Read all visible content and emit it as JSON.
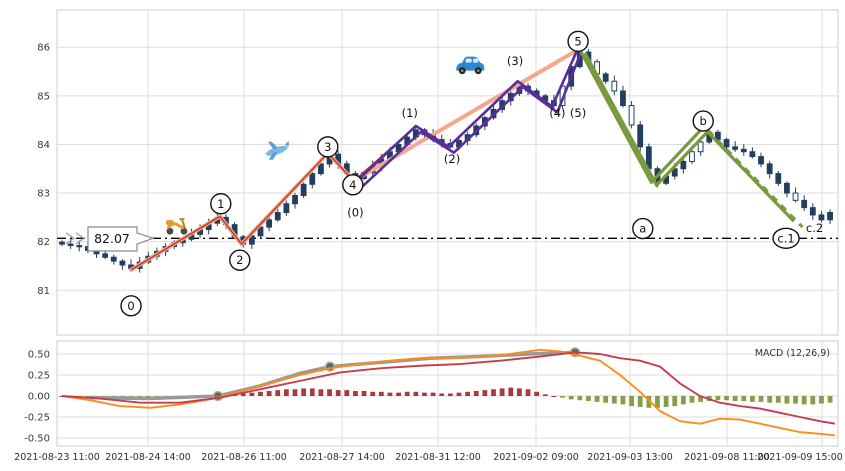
{
  "macd_label": "MACD (12,26,9)",
  "price_line": {
    "value": 82.07,
    "label": "82.07"
  },
  "price_axis": {
    "labels": [
      "86",
      "85",
      "84",
      "83",
      "82",
      "81"
    ],
    "values": [
      86,
      85,
      84,
      83,
      82,
      81
    ]
  },
  "macd_axis": {
    "labels": [
      "0.50",
      "0.25",
      "0.00",
      "-0.25",
      "-0.50"
    ],
    "values": [
      0.5,
      0.25,
      0.0,
      -0.25,
      -0.5
    ]
  },
  "x_axis": {
    "labels": [
      "2021-08-23 11:00",
      "2021-08-24 14:00",
      "2021-08-26 11:00",
      "2021-08-27 14:00",
      "2021-08-31 12:00",
      "2021-09-02 09:00",
      "2021-09-03 13:00",
      "2021-09-08 11:00",
      "2021-09-09 15:00"
    ],
    "positions": [
      57,
      148,
      244,
      342,
      438,
      536,
      630,
      727,
      822
    ]
  },
  "colors": {
    "candle": "#233f5f",
    "salmon": "#f4a78c",
    "red_line": "#c0392b",
    "purple": "#5a2d9c",
    "green": "#789a3c",
    "hline": "#000000",
    "macd_orange": "#ff8c1a",
    "macd_red": "#c43d4d",
    "macd_gray": "#999999",
    "hist_pos": "#a03030",
    "hist_neg": "#7f9a3c",
    "grid": "#dddddd",
    "panel": "#cccccc"
  },
  "icons": [
    {
      "name": "scooter",
      "i": 13.2,
      "p": 82.36
    },
    {
      "name": "airplane",
      "i": 25.0,
      "p": 83.87
    },
    {
      "name": "car",
      "i": 47.3,
      "p": 85.62
    }
  ],
  "chart_data": {
    "type": "candlestick_elliott_wave_with_macd",
    "ylim_price": [
      80.07,
      86.76
    ],
    "ylim_macd": [
      -0.6,
      0.65
    ],
    "grid": true,
    "candles": {
      "closes": [
        81.95,
        81.92,
        81.9,
        81.82,
        81.75,
        81.68,
        81.6,
        81.52,
        81.45,
        81.58,
        81.7,
        81.8,
        81.9,
        81.98,
        82.05,
        82.15,
        82.25,
        82.38,
        82.5,
        82.35,
        82.1,
        81.95,
        82.12,
        82.3,
        82.45,
        82.6,
        82.78,
        82.95,
        83.18,
        83.4,
        83.6,
        83.8,
        83.6,
        83.4,
        83.3,
        83.42,
        83.55,
        83.7,
        83.85,
        84.0,
        84.15,
        84.3,
        84.2,
        84.1,
        84.02,
        83.95,
        84.08,
        84.2,
        84.38,
        84.55,
        84.72,
        84.9,
        85.05,
        85.2,
        85.1,
        85.0,
        84.9,
        84.8,
        85.2,
        85.6,
        85.9,
        85.7,
        85.45,
        85.3,
        85.1,
        84.8,
        84.4,
        83.95,
        83.5,
        83.2,
        83.35,
        83.5,
        83.65,
        83.85,
        84.05,
        84.25,
        84.1,
        83.95,
        83.9,
        83.85,
        83.75,
        83.6,
        83.4,
        83.2,
        83.0,
        82.85,
        82.7,
        82.55,
        82.45,
        82.6
      ],
      "hollow_indices": [
        58,
        62,
        64,
        66,
        73,
        74,
        85
      ]
    },
    "waves": {
      "impulse_channel": [
        [
          8,
          81.42
        ],
        [
          18.3,
          82.52
        ],
        [
          20.8,
          81.95
        ],
        [
          30.8,
          83.82
        ],
        [
          33.8,
          83.25
        ],
        [
          59.8,
          85.95
        ]
      ],
      "impulse_detail": [
        [
          8,
          81.42
        ],
        [
          18.3,
          82.52
        ],
        [
          20.8,
          81.95
        ],
        [
          30.8,
          83.82
        ],
        [
          33.8,
          83.25
        ],
        [
          41,
          84.38
        ],
        [
          44.8,
          83.95
        ],
        [
          52.8,
          85.3
        ],
        [
          56.8,
          84.78
        ],
        [
          59.8,
          85.98
        ]
      ],
      "purple_zigzag": [
        [
          [
            34,
            83.22
          ],
          [
            41,
            84.38
          ],
          [
            44.8,
            83.95
          ],
          [
            52.8,
            85.3
          ],
          [
            56.8,
            84.78
          ],
          [
            59.8,
            85.98
          ]
        ],
        [
          [
            34.6,
            83.1
          ],
          [
            41.6,
            84.26
          ],
          [
            45.4,
            83.83
          ],
          [
            53.4,
            85.18
          ],
          [
            57.4,
            84.66
          ],
          [
            60.1,
            85.88
          ]
        ]
      ],
      "green_solid": [
        [
          [
            60,
            85.95
          ],
          [
            68.3,
            83.22
          ],
          [
            74.3,
            84.35
          ],
          [
            84.8,
            82.42
          ]
        ],
        [
          [
            60.6,
            85.88
          ],
          [
            68.9,
            83.16
          ],
          [
            74.9,
            84.28
          ]
        ]
      ],
      "green_dashed": [
        [
          74.9,
          84.28
        ],
        [
          85.8,
          82.3
        ]
      ]
    },
    "wave_labels": {
      "circled": [
        {
          "text": "0",
          "i": 8.0,
          "p": 80.68
        },
        {
          "text": "1",
          "i": 18.4,
          "p": 82.78
        },
        {
          "text": "2",
          "i": 20.6,
          "p": 81.62
        },
        {
          "text": "3",
          "i": 30.8,
          "p": 83.95
        },
        {
          "text": "4",
          "i": 33.7,
          "p": 83.17
        },
        {
          "text": "5",
          "i": 59.8,
          "p": 86.12
        },
        {
          "text": "a",
          "i": 67.3,
          "p": 82.27
        },
        {
          "text": "b",
          "i": 74.3,
          "p": 84.48
        },
        {
          "text": "c.1",
          "i": 83.9,
          "p": 82.07,
          "wide": true
        }
      ],
      "plain": [
        {
          "text": "(0)",
          "i": 34.0,
          "p": 82.6
        },
        {
          "text": "(1)",
          "i": 40.3,
          "p": 84.65
        },
        {
          "text": "(2)",
          "i": 45.2,
          "p": 83.7
        },
        {
          "text": "(3)",
          "i": 52.5,
          "p": 85.72
        },
        {
          "text": "(4)",
          "i": 57.4,
          "p": 84.65
        },
        {
          "text": "(5)",
          "i": 59.8,
          "p": 84.65
        },
        {
          "text": "c.2",
          "i": 87.2,
          "p": 82.28
        }
      ]
    },
    "macd": {
      "orange_line": [
        [
          62,
          0.0
        ],
        [
          90,
          -0.05
        ],
        [
          120,
          -0.12
        ],
        [
          150,
          -0.14
        ],
        [
          180,
          -0.1
        ],
        [
          210,
          -0.04
        ],
        [
          240,
          0.05
        ],
        [
          270,
          0.15
        ],
        [
          300,
          0.25
        ],
        [
          330,
          0.33
        ],
        [
          360,
          0.38
        ],
        [
          390,
          0.42
        ],
        [
          420,
          0.45
        ],
        [
          450,
          0.45
        ],
        [
          480,
          0.46
        ],
        [
          510,
          0.5
        ],
        [
          540,
          0.55
        ],
        [
          560,
          0.53
        ],
        [
          580,
          0.48
        ],
        [
          600,
          0.42
        ],
        [
          620,
          0.25
        ],
        [
          640,
          0.05
        ],
        [
          660,
          -0.18
        ],
        [
          680,
          -0.3
        ],
        [
          700,
          -0.33
        ],
        [
          720,
          -0.27
        ],
        [
          740,
          -0.28
        ],
        [
          760,
          -0.33
        ],
        [
          780,
          -0.38
        ],
        [
          800,
          -0.43
        ],
        [
          820,
          -0.45
        ],
        [
          835,
          -0.47
        ]
      ],
      "signal_line": [
        [
          62,
          0.0
        ],
        [
          100,
          -0.03
        ],
        [
          140,
          -0.08
        ],
        [
          180,
          -0.08
        ],
        [
          220,
          -0.02
        ],
        [
          260,
          0.08
        ],
        [
          300,
          0.18
        ],
        [
          340,
          0.28
        ],
        [
          380,
          0.33
        ],
        [
          420,
          0.36
        ],
        [
          460,
          0.38
        ],
        [
          500,
          0.42
        ],
        [
          540,
          0.47
        ],
        [
          575,
          0.52
        ],
        [
          600,
          0.5
        ],
        [
          620,
          0.45
        ],
        [
          640,
          0.42
        ],
        [
          660,
          0.35
        ],
        [
          680,
          0.15
        ],
        [
          700,
          0.0
        ],
        [
          720,
          -0.08
        ],
        [
          740,
          -0.12
        ],
        [
          760,
          -0.15
        ],
        [
          780,
          -0.2
        ],
        [
          800,
          -0.25
        ],
        [
          820,
          -0.3
        ],
        [
          835,
          -0.33
        ]
      ],
      "gray_line": [
        [
          90,
          -0.02
        ],
        [
          150,
          -0.03
        ],
        [
          218,
          0.0
        ],
        [
          260,
          0.12
        ],
        [
          300,
          0.27
        ],
        [
          330,
          0.35
        ],
        [
          380,
          0.4
        ],
        [
          430,
          0.45
        ],
        [
          480,
          0.47
        ],
        [
          530,
          0.5
        ],
        [
          575,
          0.52
        ]
      ],
      "gray_markers": [
        [
          218,
          0.0
        ],
        [
          330,
          0.35
        ],
        [
          575,
          0.52
        ]
      ],
      "histogram": [
        0.0,
        -0.01,
        -0.01,
        -0.02,
        -0.02,
        -0.03,
        -0.03,
        -0.04,
        -0.04,
        -0.03,
        -0.03,
        -0.02,
        -0.02,
        -0.01,
        -0.01,
        0.0,
        0.01,
        0.01,
        0.02,
        0.02,
        0.02,
        0.03,
        0.04,
        0.05,
        0.06,
        0.07,
        0.08,
        0.08,
        0.09,
        0.09,
        0.08,
        0.08,
        0.07,
        0.07,
        0.06,
        0.06,
        0.05,
        0.05,
        0.04,
        0.04,
        0.05,
        0.05,
        0.04,
        0.04,
        0.03,
        0.03,
        0.04,
        0.05,
        0.06,
        0.07,
        0.08,
        0.09,
        0.1,
        0.09,
        0.08,
        0.05,
        0.02,
        0.0,
        -0.02,
        -0.04,
        -0.05,
        -0.06,
        -0.07,
        -0.08,
        -0.09,
        -0.1,
        -0.12,
        -0.13,
        -0.14,
        -0.14,
        -0.13,
        -0.12,
        -0.1,
        -0.08,
        -0.07,
        -0.06,
        -0.05,
        -0.05,
        -0.06,
        -0.06,
        -0.07,
        -0.07,
        -0.08,
        -0.08,
        -0.09,
        -0.09,
        -0.1,
        -0.1,
        -0.09,
        -0.08
      ]
    }
  }
}
